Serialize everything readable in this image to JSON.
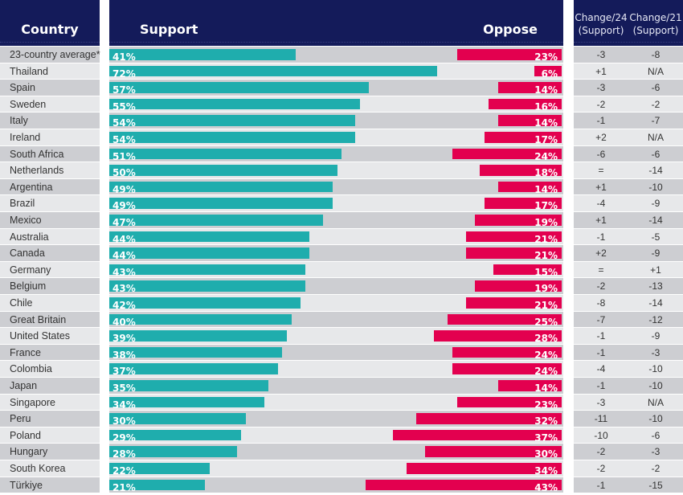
{
  "colors": {
    "header_bg": "#141b5a",
    "support": "#1fadad",
    "oppose": "#e3004f",
    "row_dark": "#cdced2",
    "row_light": "#e7e8ea"
  },
  "headers": {
    "country": "Country",
    "support": "Support",
    "oppose": "Oppose",
    "change24_line1": "Change/24",
    "change24_line2": "(Support)",
    "change21_line1": "Change/21",
    "change21_line2": "(Support)"
  },
  "chart_data": {
    "type": "bar",
    "title": "",
    "xlabel": "",
    "ylabel": "",
    "xlim": [
      0,
      100
    ],
    "legend": "none",
    "grid": false,
    "categories": [
      "23-country average*",
      "Thailand",
      "Spain",
      "Sweden",
      "Italy",
      "Ireland",
      "South Africa",
      "Netherlands",
      "Argentina",
      "Brazil",
      "Mexico",
      "Australia",
      "Canada",
      "Germany",
      "Belgium",
      "Chile",
      "Great Britain",
      "United States",
      "France",
      "Colombia",
      "Japan",
      "Singapore",
      "Peru",
      "Poland",
      "Hungary",
      "South Korea",
      "Türkiye"
    ],
    "series": [
      {
        "name": "Support",
        "values": [
          41,
          72,
          57,
          55,
          54,
          54,
          51,
          50,
          49,
          49,
          47,
          44,
          44,
          43,
          43,
          42,
          40,
          39,
          38,
          37,
          35,
          34,
          30,
          29,
          28,
          22,
          21
        ]
      },
      {
        "name": "Oppose",
        "values": [
          23,
          6,
          14,
          16,
          14,
          17,
          24,
          18,
          14,
          17,
          19,
          21,
          21,
          15,
          19,
          21,
          25,
          28,
          24,
          24,
          14,
          23,
          32,
          37,
          30,
          34,
          43
        ]
      }
    ],
    "change_24": [
      "-3",
      "+1",
      "-3",
      "-2",
      "-1",
      "+2",
      "-6",
      "=",
      "+1",
      "-4",
      "+1",
      "-1",
      "+2",
      "=",
      "-2",
      "-8",
      "-7",
      "-1",
      "-1",
      "-4",
      "-1",
      "-3",
      "-11",
      "-10",
      "-2",
      "-2",
      "-1"
    ],
    "change_21": [
      "-8",
      "N/A",
      "-6",
      "-2",
      "-7",
      "N/A",
      "-6",
      "-14",
      "-10",
      "-9",
      "-14",
      "-5",
      "-9",
      "+1",
      "-13",
      "-14",
      "-12",
      "-9",
      "-3",
      "-10",
      "-10",
      "N/A",
      "-10",
      "-6",
      "-3",
      "-2",
      "-15"
    ]
  }
}
